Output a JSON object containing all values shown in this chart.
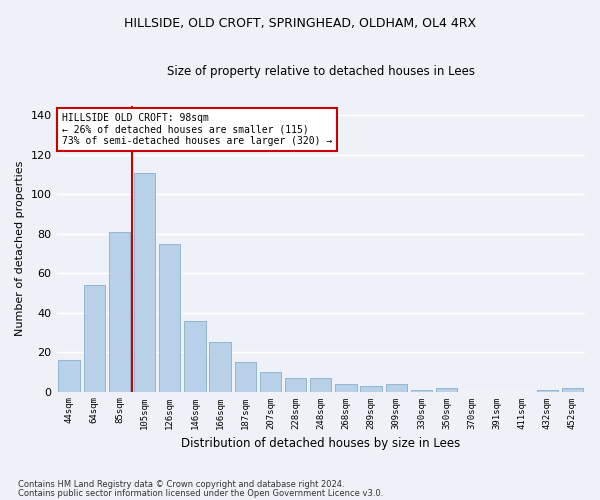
{
  "title1": "HILLSIDE, OLD CROFT, SPRINGHEAD, OLDHAM, OL4 4RX",
  "title2": "Size of property relative to detached houses in Lees",
  "xlabel": "Distribution of detached houses by size in Lees",
  "ylabel": "Number of detached properties",
  "categories": [
    "44sqm",
    "64sqm",
    "85sqm",
    "105sqm",
    "126sqm",
    "146sqm",
    "166sqm",
    "187sqm",
    "207sqm",
    "228sqm",
    "248sqm",
    "268sqm",
    "289sqm",
    "309sqm",
    "330sqm",
    "350sqm",
    "370sqm",
    "391sqm",
    "411sqm",
    "432sqm",
    "452sqm"
  ],
  "values": [
    16,
    54,
    81,
    111,
    75,
    36,
    25,
    15,
    10,
    7,
    7,
    4,
    3,
    4,
    1,
    2,
    0,
    0,
    0,
    1,
    2
  ],
  "bar_color": "#b8d0e8",
  "bar_edge_color": "#8aaecc",
  "vline_color": "#cc0000",
  "vline_x_index": 2.5,
  "annotation_title": "HILLSIDE OLD CROFT: 98sqm",
  "annotation_line1": "← 26% of detached houses are smaller (115)",
  "annotation_line2": "73% of semi-detached houses are larger (320) →",
  "annotation_box_color": "#ffffff",
  "annotation_box_edge": "#cc0000",
  "ylim": [
    0,
    145
  ],
  "yticks": [
    0,
    20,
    40,
    60,
    80,
    100,
    120,
    140
  ],
  "background_color": "#eef2f8",
  "grid_color": "#ffffff",
  "title1_fontsize": 9,
  "title2_fontsize": 8.5,
  "footnote1": "Contains HM Land Registry data © Crown copyright and database right 2024.",
  "footnote2": "Contains public sector information licensed under the Open Government Licence v3.0."
}
